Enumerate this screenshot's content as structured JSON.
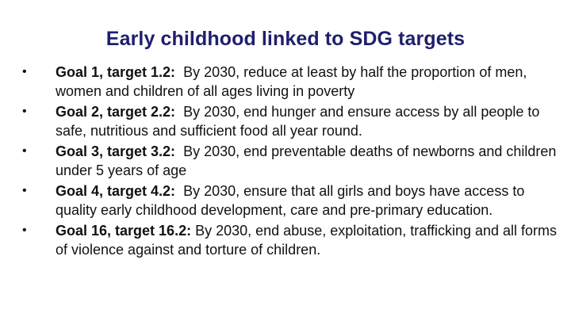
{
  "slide": {
    "title": "Early childhood linked to SDG targets",
    "accent_color": "#1f1f6e",
    "bullet_glyph": "•",
    "items": [
      {
        "label": "Goal 1, target 1.2:",
        "text": "By 2030, reduce at least by half the proportion of men, women and children of all ages living in poverty"
      },
      {
        "label": "Goal 2, target 2.2:",
        "text": "By 2030, end hunger and ensure access by all people to safe, nutritious and sufficient food all year round."
      },
      {
        "label": "Goal 3, target 3.2:",
        "text": "By 2030, end preventable deaths of newborns and children under 5 years of age"
      },
      {
        "label": "Goal 4, target 4.2:",
        "text": "By 2030, ensure that all girls and boys have access to quality early childhood development, care and pre-primary education."
      },
      {
        "label": "Goal 16, target 16.2:",
        "text": "By 2030, end abuse, exploitation, trafficking and all forms of violence against and torture of children."
      }
    ]
  }
}
